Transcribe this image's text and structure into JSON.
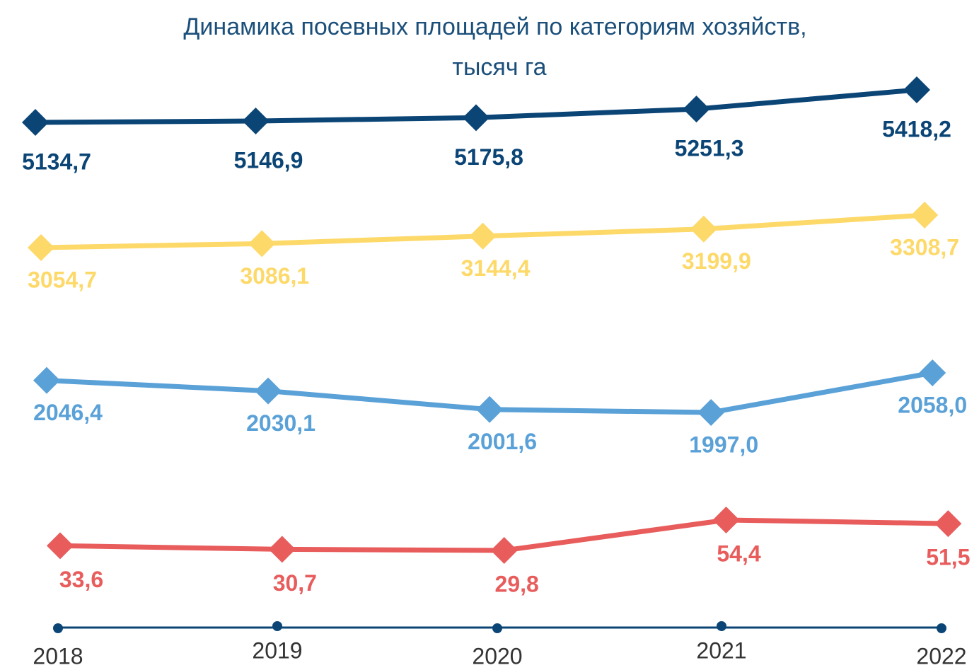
{
  "chart_data": {
    "type": "line",
    "title": [
      "Динамика посевных площадей по категориям хозяйств,",
      "тысяч га"
    ],
    "categories": [
      "2018",
      "2019",
      "2020",
      "2021",
      "2022"
    ],
    "series": [
      {
        "color": "#0b4576",
        "values": [
          5134.7,
          5146.9,
          5175.8,
          5251.3,
          5418.2
        ],
        "value_labels": [
          "5134,7",
          "5146,9",
          "5175,8",
          "5251,3",
          "5418,2"
        ]
      },
      {
        "color": "#fdd96a",
        "values": [
          3054.7,
          3086.1,
          3144.4,
          3199.9,
          3308.7
        ],
        "value_labels": [
          "3054,7",
          "3086,1",
          "3144,4",
          "3199,9",
          "3308,7"
        ]
      },
      {
        "color": "#5aa1d8",
        "values": [
          2046.4,
          2030.1,
          2001.6,
          1997.0,
          2058.0
        ],
        "value_labels": [
          "2046,4",
          "2030,1",
          "2001,6",
          "1997,0",
          "2058,0"
        ]
      },
      {
        "color": "#e85c5c",
        "values": [
          33.6,
          30.7,
          29.8,
          54.4,
          51.5
        ],
        "value_labels": [
          "33,6",
          "30,7",
          "29,8",
          "54,4",
          "51,5"
        ]
      }
    ]
  }
}
